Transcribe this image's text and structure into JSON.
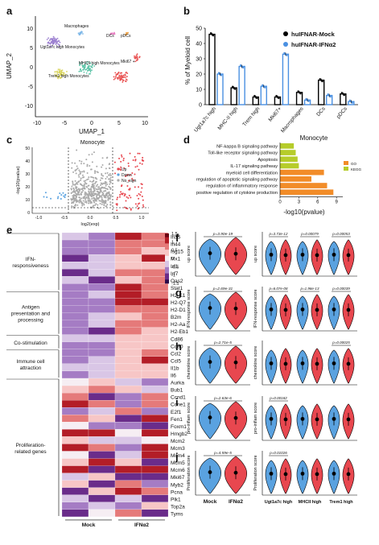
{
  "panels": {
    "a": "a",
    "b": "b",
    "c": "c",
    "d": "d",
    "e": "e",
    "f": "f",
    "g": "g",
    "h": "h",
    "i": "i",
    "j": "j"
  },
  "umap": {
    "xlabel": "UMAP_1",
    "ylabel": "UMAP_2",
    "xticks": [
      "-10",
      "-5",
      "0",
      "5",
      "10"
    ],
    "yticks": [
      "10",
      "5",
      "0",
      "-5",
      "-10"
    ],
    "labels": {
      "macrophages": "Macrophages",
      "dcs": "DCs",
      "pdcs": "pDCs",
      "ugt": "Ugt1a7c high Monocytes",
      "mhc": "MHCII high Monocytes",
      "trem": "Trem1 high Monocytes",
      "mki67": "Mki67 +"
    }
  },
  "chart_data": [
    {
      "type": "bar",
      "ylabel": "% of Myeloid cell",
      "ylim": [
        0,
        50
      ],
      "yticks": [
        "0",
        "10",
        "20",
        "30",
        "40",
        "50"
      ],
      "categories": [
        "Ugt1a7c high",
        "MHC-II high",
        "Trem high",
        "Mki67+",
        "Macrophages",
        "DCs",
        "pDCs"
      ],
      "series": [
        {
          "name": "huIFNAR-Mock",
          "color": "#000000",
          "values": [
            46,
            11,
            5,
            5,
            8,
            16,
            7
          ]
        },
        {
          "name": "huIFNAR-IFNα2",
          "color": "#4a90e2",
          "values": [
            20,
            25,
            12,
            33,
            3,
            6,
            2
          ]
        }
      ]
    },
    {
      "type": "bar",
      "title": "Monocyte",
      "xlabel": "-log10(pvalue)",
      "xticks": [
        "0",
        "3",
        "6",
        "9"
      ],
      "xlim": [
        0,
        10
      ],
      "categories": [
        "NF-kappa B signaling pathway",
        "Toll-like receptor signaling pathway",
        "Apoptosis",
        "IL-17 signaling pathway",
        "myeloid cell differentiation",
        "regulation of apoptotic signaling pathway",
        "regulation of inflammatory response",
        "positive regulation of cytokine production"
      ],
      "values": [
        2.2,
        2.5,
        2.8,
        3.0,
        7.0,
        5.0,
        7.5,
        8.5
      ],
      "db": [
        "KEGG",
        "KEGG",
        "KEGG",
        "KEGG",
        "GO",
        "GO",
        "GO",
        "GO"
      ],
      "legend": [
        {
          "name": "GO",
          "color": "#f28c28"
        },
        {
          "name": "KEGG",
          "color": "#b6cc2a"
        }
      ]
    },
    {
      "type": "scatter",
      "title": "Monocyte",
      "xlabel": "log2(exp)",
      "ylabel": "-log10(pvalue)",
      "xticks": [
        "-1.0",
        "-0.5",
        "0.0",
        "0.5",
        "1.0"
      ],
      "yticks": [
        "0",
        "10",
        "20",
        "30",
        "40",
        "50"
      ],
      "legend": [
        "Up",
        "Down",
        "No_sign"
      ]
    }
  ],
  "heatmap": {
    "groups": [
      "IFN-\nresponsiveness",
      "Antigen\npresentation and\nprocessing",
      "Co-stimulation",
      "Immune cell\nattraction",
      "Proliferation-\nrelated genes"
    ],
    "genes": [
      "Ifi35",
      "Ifi44",
      "Isg15",
      "Mx1",
      "Irf1",
      "Irf7",
      "Oas2",
      "Stat1",
      "H2-K1",
      "H2-Q7",
      "H2-D1",
      "B2m",
      "H2-Aa",
      "H2-Eb1",
      "Cd86",
      "Cd80",
      "Ccl2",
      "Ccl5",
      "Il1b",
      "Il6",
      "Aurka",
      "Bub1",
      "Ccnd1",
      "Ccne1",
      "E2f1",
      "Fen1",
      "Foxm1",
      "Hmgb2",
      "Mcm2",
      "Mcm3",
      "Mcm4",
      "Mcm5",
      "Mcm6",
      "Mki67",
      "Myb2",
      "Pcna",
      "Plk1",
      "Top2a",
      "Tyms"
    ],
    "xlabels": [
      "Mock",
      "IFNα2"
    ],
    "colorbar": [
      "1.5",
      "1",
      "0.5",
      "0",
      "-0.5",
      "-1",
      "-1.5"
    ]
  },
  "violins": {
    "f": {
      "ylabel_left": "up score",
      "ylabel_right": "up score",
      "p_left": "p=3.90e-19",
      "p_right": [
        "p=3.73e-12",
        "p=0.00079",
        "p=0.00053"
      ]
    },
    "g": {
      "ylabel_left": "IFN-response score",
      "ylabel_right": "IFN-response score",
      "p_left": "p=2.69e-31",
      "p_right": [
        "p=6.07e-08",
        "p=1.96e-13",
        "p=0.00039"
      ]
    },
    "h": {
      "ylabel_left": "chemokine score",
      "ylabel_right": "chemokine score",
      "p_left": "p=2.71e-5",
      "p_right": [
        "p=0.00025"
      ]
    },
    "i": {
      "ylabel_left": "pro-inflam score",
      "ylabel_right": "pro-inflam score",
      "p_left": "p=2.63e-6",
      "p_right": [
        "p=0.00182"
      ]
    },
    "j": {
      "ylabel_left": "Proliferation score",
      "ylabel_right": "Proliferation score",
      "p_left": "p=4.59e-5",
      "p_right": [
        "p=0.01026"
      ]
    },
    "xlabels_left": [
      "Mock",
      "IFNα2"
    ],
    "xlabels_right": [
      "Ugt1a7c high",
      "MHCII high",
      "Trem1 high"
    ]
  }
}
